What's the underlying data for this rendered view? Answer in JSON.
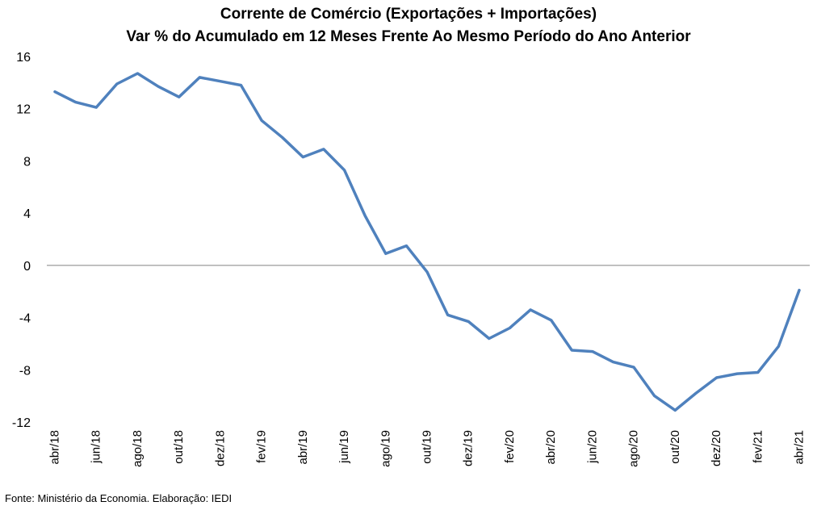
{
  "chart_data": {
    "type": "line",
    "title": "Corrente de Comércio (Exportações + Importações)",
    "subtitle": "Var % do Acumulado em 12 Meses Frente Ao Mesmo Período do Ano Anterior",
    "source": "Fonte: Ministério da Economia. Elaboração: IEDI",
    "xlabel": "",
    "ylabel": "",
    "ylim": [
      -12,
      16
    ],
    "yticks": [
      16,
      12,
      8,
      4,
      0,
      -4,
      -8,
      -12
    ],
    "grid": false,
    "legend": "none",
    "color": "#4f81bd",
    "categories": [
      "abr/18",
      "mai/18",
      "jun/18",
      "jul/18",
      "ago/18",
      "set/18",
      "out/18",
      "nov/18",
      "dez/18",
      "jan/19",
      "fev/19",
      "mar/19",
      "abr/19",
      "mai/19",
      "jun/19",
      "jul/19",
      "ago/19",
      "set/19",
      "out/19",
      "nov/19",
      "dez/19",
      "jan/20",
      "fev/20",
      "mar/20",
      "abr/20",
      "mai/20",
      "jun/20",
      "jul/20",
      "ago/20",
      "set/20",
      "out/20",
      "nov/20",
      "dez/20",
      "jan/21",
      "fev/21",
      "mar/21",
      "abr/21"
    ],
    "tick_labels": [
      "abr/18",
      "jun/18",
      "ago/18",
      "out/18",
      "dez/18",
      "fev/19",
      "abr/19",
      "jun/19",
      "ago/19",
      "out/19",
      "dez/19",
      "fev/20",
      "abr/20",
      "jun/20",
      "ago/20",
      "out/20",
      "dez/20",
      "fev/21",
      "abr/21"
    ],
    "series": [
      {
        "values": [
          13.3,
          12.5,
          12.1,
          13.9,
          14.7,
          13.7,
          12.9,
          14.4,
          14.1,
          13.8,
          11.1,
          9.8,
          8.3,
          8.9,
          7.3,
          3.8,
          0.9,
          1.5,
          -0.5,
          -3.8,
          -4.3,
          -5.6,
          -4.8,
          -3.4,
          -4.2,
          -6.5,
          -6.6,
          -7.4,
          -7.8,
          -10.0,
          -11.1,
          -9.8,
          -8.6,
          -8.3,
          -8.2,
          -6.2,
          -1.9
        ]
      }
    ]
  }
}
